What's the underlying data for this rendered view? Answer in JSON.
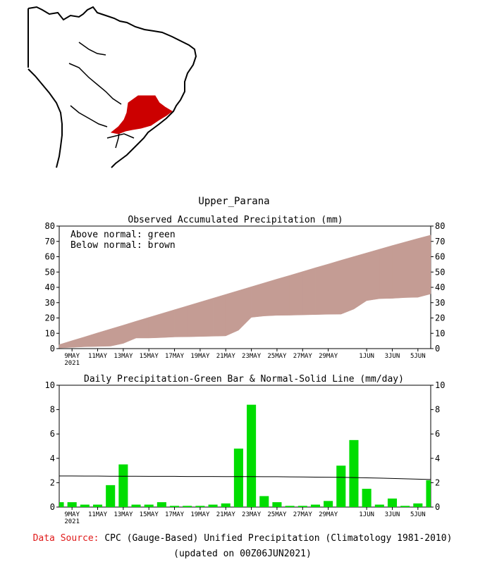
{
  "region_title": "Upper_Parana",
  "colors": {
    "above_normal": "#00dd00",
    "below_normal": "#c49c94",
    "bar": "#00dd00",
    "normal_line": "#000000",
    "region_fill": "#cc0000",
    "source_label": "#e01a1a"
  },
  "legend": {
    "above": "Above normal: green",
    "below": "Below normal: brown"
  },
  "x_ticks": [
    {
      "day": 0,
      "label": "9MAY",
      "sub": "2021"
    },
    {
      "day": 2,
      "label": "11MAY"
    },
    {
      "day": 4,
      "label": "13MAY"
    },
    {
      "day": 6,
      "label": "15MAY"
    },
    {
      "day": 8,
      "label": "17MAY"
    },
    {
      "day": 10,
      "label": "19MAY"
    },
    {
      "day": 12,
      "label": "21MAY"
    },
    {
      "day": 14,
      "label": "23MAY"
    },
    {
      "day": 16,
      "label": "25MAY"
    },
    {
      "day": 18,
      "label": "27MAY"
    },
    {
      "day": 20,
      "label": "29MAY"
    },
    {
      "day": 23,
      "label": "1JUN"
    },
    {
      "day": 25,
      "label": "3JUN"
    },
    {
      "day": 27,
      "label": "5JUN"
    }
  ],
  "chart_data": [
    {
      "type": "area",
      "title": "Observed Accumulated Precipitation (mm)",
      "ylim": [
        0,
        80
      ],
      "yticks": [
        0,
        10,
        20,
        30,
        40,
        50,
        60,
        70,
        80
      ],
      "x_start": "2021-05-08",
      "x_days": 29,
      "series": [
        {
          "name": "Observed accumulated",
          "values": [
            0.4,
            0.8,
            1.2,
            1.4,
            1.6,
            3.4,
            6.9,
            6.9,
            7.2,
            7.6,
            7.7,
            7.9,
            8.1,
            8.3,
            12.0,
            20.4,
            21.3,
            21.7,
            21.8,
            22.0,
            22.2,
            22.4,
            22.5,
            25.8,
            31.3,
            32.6,
            32.8,
            33.3,
            33.5,
            35.7
          ]
        },
        {
          "name": "Normal accumulated",
          "values": [
            2.6,
            5.2,
            7.7,
            10.3,
            12.8,
            15.3,
            17.9,
            20.4,
            22.9,
            25.4,
            27.9,
            30.4,
            32.9,
            35.4,
            37.9,
            40.4,
            42.9,
            45.4,
            47.8,
            50.3,
            52.8,
            55.2,
            57.7,
            60.1,
            62.5,
            64.9,
            67.3,
            69.6,
            71.9,
            74.1
          ]
        }
      ]
    },
    {
      "type": "bar",
      "title": "Daily Precipitation-Green Bar & Normal-Solid Line (mm/day)",
      "ylim": [
        0,
        10
      ],
      "yticks": [
        0,
        2,
        4,
        6,
        8,
        10
      ],
      "x_start": "2021-05-08",
      "x_days": 29,
      "series": [
        {
          "name": "Daily precipitation",
          "values": [
            0.4,
            0.4,
            0.2,
            0.2,
            1.8,
            3.5,
            0.2,
            0.2,
            0.4,
            0.1,
            0.1,
            0.1,
            0.2,
            0.3,
            4.8,
            8.4,
            0.9,
            0.4,
            0.1,
            0.1,
            0.2,
            0.5,
            3.4,
            5.5,
            1.5,
            0.2,
            0.7,
            0.1,
            0.3,
            2.2
          ]
        },
        {
          "name": "Daily normal",
          "values": [
            2.55,
            2.55,
            2.54,
            2.54,
            2.53,
            2.53,
            2.53,
            2.52,
            2.52,
            2.52,
            2.51,
            2.51,
            2.51,
            2.5,
            2.5,
            2.5,
            2.49,
            2.49,
            2.48,
            2.47,
            2.46,
            2.45,
            2.44,
            2.42,
            2.4,
            2.38,
            2.35,
            2.32,
            2.29,
            2.26
          ]
        }
      ]
    }
  ],
  "footer": {
    "source_label": "Data Source:",
    "source_text": "CPC (Gauge-Based) Unified Precipitation (Climatology 1981-2010)",
    "updated": "(updated on 00Z06JUN2021)"
  }
}
